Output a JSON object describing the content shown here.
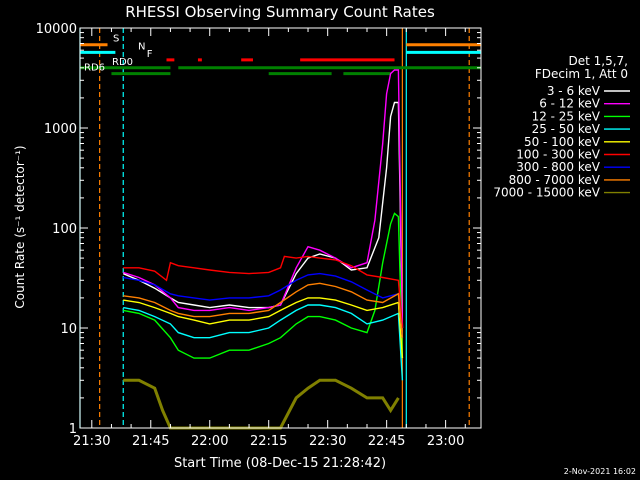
{
  "chart_data": {
    "type": "line",
    "title": "RHESSI Observing Summary Count Rates",
    "xlabel": "Start Time (08-Dec-15 21:28:42)",
    "ylabel": "Count Rate (s⁻¹ detector⁻¹)",
    "y_scale": "log",
    "ylim": [
      1,
      10000
    ],
    "xlim": [
      "21:27",
      "23:09"
    ],
    "x_ticks": [
      "21:30",
      "21:45",
      "22:00",
      "22:15",
      "22:30",
      "22:45",
      "23:00"
    ],
    "y_ticks": [
      "1",
      "10",
      "100",
      "1000",
      "10000"
    ],
    "legend_position": "top-right",
    "legend_header": [
      "Det 1,5,7,",
      "FDecim 1, Att 0"
    ],
    "date_stamp": "2-Nov-2021 16:02",
    "series": [
      {
        "name": "3 - 6 keV",
        "color": "#ffffff",
        "x": [
          "21:38",
          "21:42",
          "21:46",
          "21:50",
          "21:52",
          "21:56",
          "22:00",
          "22:05",
          "22:10",
          "22:15",
          "22:18",
          "22:22",
          "22:25",
          "22:28",
          "22:32",
          "22:36",
          "22:40",
          "22:43",
          "22:45",
          "22:46",
          "22:47",
          "22:48",
          "22:49"
        ],
        "y": [
          35,
          30,
          25,
          20,
          18,
          17,
          16,
          17,
          16,
          16,
          17,
          35,
          50,
          55,
          50,
          38,
          40,
          80,
          400,
          1300,
          1800,
          1800,
          10
        ]
      },
      {
        "name": "6 - 12 keV",
        "color": "#ff00ff",
        "x": [
          "21:38",
          "21:42",
          "21:46",
          "21:50",
          "21:52",
          "21:56",
          "22:00",
          "22:05",
          "22:10",
          "22:15",
          "22:18",
          "22:22",
          "22:25",
          "22:28",
          "22:32",
          "22:36",
          "22:40",
          "22:42",
          "22:44",
          "22:45",
          "22:46",
          "22:47",
          "22:48",
          "22:49"
        ],
        "y": [
          36,
          32,
          27,
          20,
          16,
          15,
          15,
          16,
          15,
          16,
          17,
          40,
          65,
          60,
          50,
          40,
          45,
          120,
          700,
          2200,
          3500,
          3800,
          3800,
          10
        ]
      },
      {
        "name": "12 - 25 keV",
        "color": "#00ff00",
        "x": [
          "21:38",
          "21:42",
          "21:46",
          "21:50",
          "21:52",
          "21:56",
          "22:00",
          "22:05",
          "22:10",
          "22:15",
          "22:18",
          "22:22",
          "22:25",
          "22:28",
          "22:32",
          "22:36",
          "22:40",
          "22:42",
          "22:44",
          "22:46",
          "22:47",
          "22:48",
          "22:49"
        ],
        "y": [
          15,
          14,
          12,
          8,
          6,
          5,
          5,
          6,
          6,
          7,
          8,
          11,
          13,
          13,
          12,
          10,
          9,
          15,
          45,
          110,
          140,
          130,
          5
        ]
      },
      {
        "name": "25 - 50 keV",
        "color": "#00ffff",
        "x": [
          "21:38",
          "21:42",
          "21:46",
          "21:50",
          "21:52",
          "21:56",
          "22:00",
          "22:05",
          "22:10",
          "22:15",
          "22:18",
          "22:22",
          "22:25",
          "22:28",
          "22:32",
          "22:36",
          "22:40",
          "22:44",
          "22:48",
          "22:49"
        ],
        "y": [
          16,
          15,
          13,
          11,
          9,
          8,
          8,
          9,
          9,
          10,
          12,
          15,
          17,
          17,
          16,
          14,
          11,
          12,
          14,
          3
        ]
      },
      {
        "name": "50 - 100 keV",
        "color": "#ffff00",
        "x": [
          "21:38",
          "21:42",
          "21:46",
          "21:50",
          "21:52",
          "21:56",
          "22:00",
          "22:05",
          "22:10",
          "22:15",
          "22:18",
          "22:22",
          "22:25",
          "22:28",
          "22:32",
          "22:36",
          "22:40",
          "22:44",
          "22:48",
          "22:49"
        ],
        "y": [
          19,
          18,
          16,
          14,
          13,
          12,
          11,
          12,
          12,
          13,
          15,
          18,
          20,
          20,
          19,
          17,
          15,
          16,
          18,
          5
        ]
      },
      {
        "name": "100 - 300 keV",
        "color": "#ff0000",
        "x": [
          "21:38",
          "21:42",
          "21:46",
          "21:49",
          "21:50",
          "21:52",
          "21:56",
          "22:00",
          "22:05",
          "22:10",
          "22:15",
          "22:18",
          "22:19",
          "22:22",
          "22:25",
          "22:28",
          "22:32",
          "22:36",
          "22:40",
          "22:44",
          "22:48",
          "22:49"
        ],
        "y": [
          40,
          40,
          37,
          30,
          45,
          42,
          40,
          38,
          36,
          35,
          36,
          40,
          52,
          50,
          52,
          50,
          48,
          42,
          34,
          32,
          30,
          10
        ]
      },
      {
        "name": "300 - 800 keV",
        "color": "#0000ff",
        "x": [
          "21:38",
          "21:42",
          "21:46",
          "21:50",
          "21:52",
          "21:56",
          "22:00",
          "22:05",
          "22:10",
          "22:15",
          "22:18",
          "22:22",
          "22:25",
          "22:28",
          "22:32",
          "22:36",
          "22:40",
          "22:44",
          "22:48",
          "22:49"
        ],
        "y": [
          32,
          30,
          27,
          22,
          21,
          20,
          19,
          20,
          20,
          21,
          24,
          30,
          34,
          35,
          33,
          29,
          24,
          20,
          22,
          8
        ]
      },
      {
        "name": "800 - 7000 keV",
        "color": "#ff8000",
        "x": [
          "21:38",
          "21:42",
          "21:46",
          "21:50",
          "21:52",
          "21:56",
          "22:00",
          "22:05",
          "22:10",
          "22:15",
          "22:18",
          "22:22",
          "22:25",
          "22:28",
          "22:32",
          "22:36",
          "22:40",
          "22:44",
          "22:48",
          "22:49"
        ],
        "y": [
          21,
          20,
          18,
          15,
          14,
          13,
          13,
          14,
          14,
          15,
          18,
          23,
          27,
          28,
          26,
          23,
          19,
          18,
          22,
          8
        ]
      },
      {
        "name": "7000 - 15000 keV",
        "color": "#808000",
        "x": [
          "21:38",
          "21:42",
          "21:46",
          "21:48",
          "21:50",
          "21:52",
          "21:56",
          "22:00",
          "22:05",
          "22:10",
          "22:15",
          "22:18",
          "22:22",
          "22:25",
          "22:28",
          "22:32",
          "22:36",
          "22:40",
          "22:44",
          "22:46",
          "22:48"
        ],
        "y": [
          3,
          3,
          2.5,
          1.5,
          1,
          1,
          1,
          1,
          1,
          1,
          1,
          1,
          2,
          2.5,
          3,
          3,
          2.5,
          2,
          2,
          1.5,
          2
        ]
      }
    ],
    "vertical_lines": [
      {
        "x": "21:32",
        "color": "#ff8000",
        "style": "dashed"
      },
      {
        "x": "21:38",
        "color": "#00ffff",
        "style": "dashed"
      },
      {
        "x": "22:49",
        "color": "#ff8000",
        "style": "solid"
      },
      {
        "x": "22:50",
        "color": "#00ffff",
        "style": "solid"
      },
      {
        "x": "23:06",
        "color": "#ff8000",
        "style": "dashed"
      },
      {
        "x": "21:27",
        "color": "#00ffff",
        "style": "solid"
      }
    ],
    "state_bars": [
      {
        "label": "S",
        "color": "#ff8000",
        "level": 6800,
        "segments": [
          [
            "21:27",
            "21:34"
          ],
          [
            "22:50",
            "23:09"
          ]
        ]
      },
      {
        "label": "N",
        "color": "#00ffff",
        "level": 5700,
        "segments": [
          [
            "21:27",
            "21:36"
          ],
          [
            "22:50",
            "23:09"
          ]
        ]
      },
      {
        "label": "F",
        "color": "#ff0000",
        "level": 4800,
        "segments": [
          [
            "21:49",
            "21:51"
          ],
          [
            "21:57",
            "21:58"
          ],
          [
            "22:08",
            "22:11"
          ],
          [
            "22:23",
            "22:47"
          ]
        ]
      },
      {
        "label": "RD0",
        "color": "#008000",
        "level": 4000,
        "segments": [
          [
            "21:27",
            "21:50"
          ],
          [
            "21:52",
            "22:48"
          ],
          [
            "22:48",
            "23:09"
          ]
        ]
      },
      {
        "label": "RD6",
        "color": "#008000",
        "level": 3500,
        "segments": [
          [
            "21:35",
            "21:50"
          ],
          [
            "22:15",
            "22:31"
          ],
          [
            "22:34",
            "22:46"
          ]
        ]
      }
    ]
  }
}
